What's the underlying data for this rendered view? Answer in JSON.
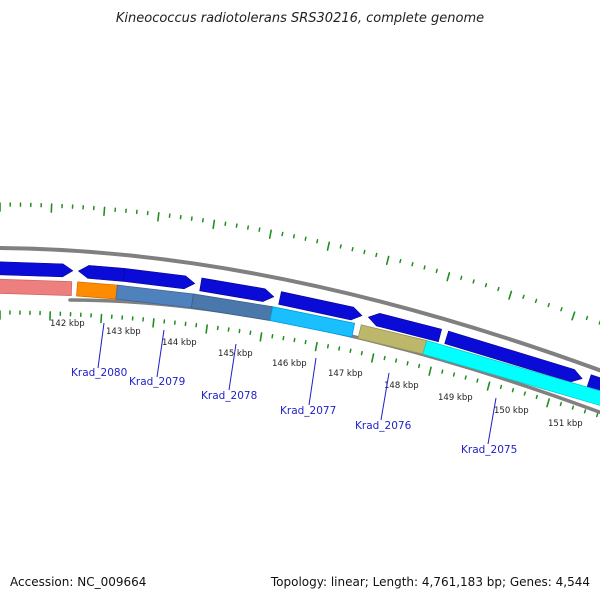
{
  "header": {
    "title": "Kineococcus radiotolerans SRS30216, complete genome"
  },
  "footer": {
    "accession": "Accession: NC_009664",
    "summary": "Topology: linear; Length: 4,761,183 bp; Genes: 4,544"
  },
  "colors": {
    "background": "#ffffff",
    "gridline": "#808080",
    "tick_green": "#1f8f1f",
    "gene_blue": "#0b0bd8",
    "label_blue": "#1f1fc8",
    "footer_text": "#111111"
  },
  "scale": {
    "unit": "kbp",
    "ticks": [
      {
        "kbp": 142,
        "label": "142 kbp"
      },
      {
        "kbp": 143,
        "label": "143 kbp"
      },
      {
        "kbp": 144,
        "label": "144 kbp"
      },
      {
        "kbp": 145,
        "label": "145 kbp"
      },
      {
        "kbp": 146,
        "label": "146 kbp"
      },
      {
        "kbp": 147,
        "label": "147 kbp"
      },
      {
        "kbp": 148,
        "label": "148 kbp"
      },
      {
        "kbp": 149,
        "label": "149 kbp"
      },
      {
        "kbp": 150,
        "label": "150 kbp"
      },
      {
        "kbp": 151,
        "label": "151 kbp"
      }
    ]
  },
  "gene_labels": [
    {
      "name": "Krad_2080"
    },
    {
      "name": "Krad_2079"
    },
    {
      "name": "Krad_2078"
    },
    {
      "name": "Krad_2077"
    },
    {
      "name": "Krad_2076"
    },
    {
      "name": "Krad_2075"
    }
  ]
}
